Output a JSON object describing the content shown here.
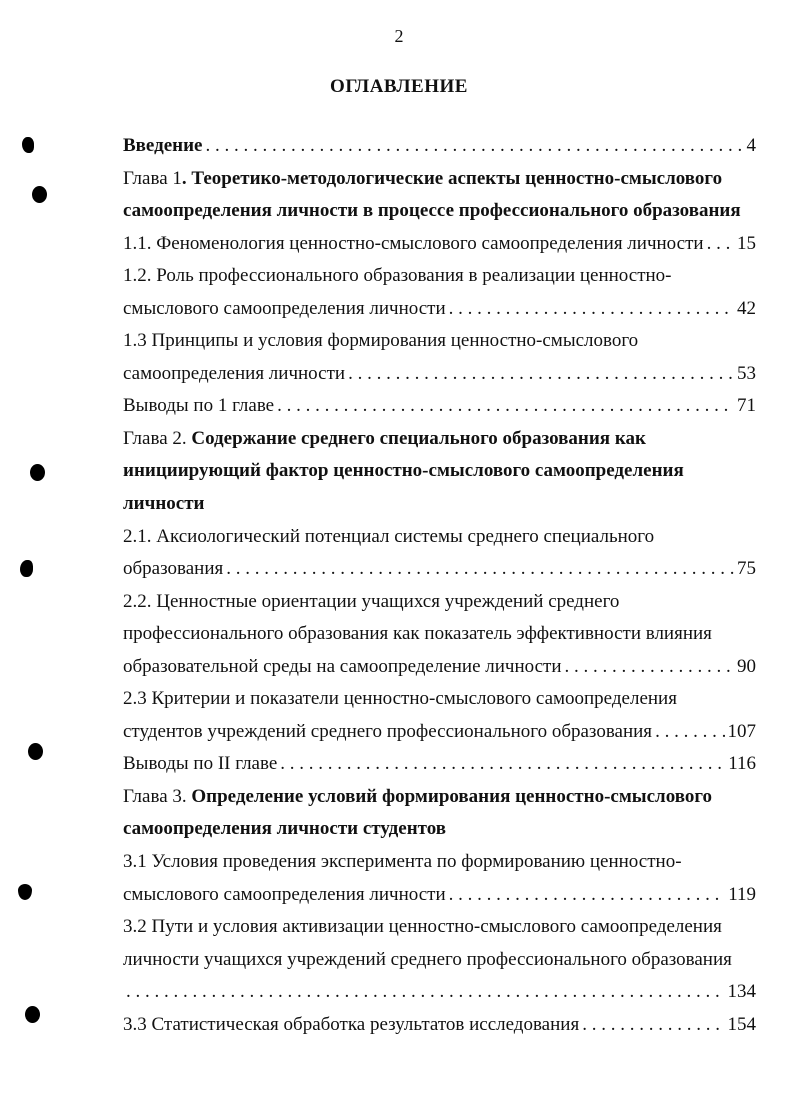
{
  "page_number": "2",
  "title": "ОГЛАВЛЕНИЕ",
  "entries": [
    {
      "lines": [
        {
          "bold": "Введение"
        }
      ],
      "page": "4"
    },
    {
      "lines": [
        {
          "regular": "Глава 1",
          "bold": ". Теоретико-методологические аспекты ценностно-смыслового"
        },
        {
          "bold": "самоопределения личности в процессе профессионального образования"
        }
      ]
    },
    {
      "lines": [
        {
          "regular": "1.1. Феноменология ценностно-смыслового самоопределения личности"
        }
      ],
      "page": "15"
    },
    {
      "lines": [
        {
          "regular": "1.2. Роль профессионального образования в реализации ценностно-"
        },
        {
          "regular": "смыслового самоопределения личности"
        }
      ],
      "page": "42"
    },
    {
      "lines": [
        {
          "regular": "1.3 Принципы и условия формирования ценностно-смыслового"
        },
        {
          "regular": "самоопределения личности"
        }
      ],
      "page": "53"
    },
    {
      "lines": [
        {
          "regular": "Выводы по 1 главе"
        }
      ],
      "page": "71"
    },
    {
      "lines": [
        {
          "regular": "Глава 2. ",
          "bold": "Содержание среднего специального образования как"
        },
        {
          "bold": "инициирующий фактор ценностно-смыслового самоопределения"
        },
        {
          "bold": "личности"
        }
      ]
    },
    {
      "lines": [
        {
          "regular": "2.1. Аксиологический потенциал системы среднего специального"
        },
        {
          "regular": "образования"
        }
      ],
      "page": "75"
    },
    {
      "lines": [
        {
          "regular": "2.2. Ценностные ориентации учащихся учреждений среднего"
        },
        {
          "regular": "профессионального образования как показатель эффективности влияния"
        },
        {
          "regular": "образовательной среды на самоопределение личности"
        }
      ],
      "page": "90"
    },
    {
      "lines": [
        {
          "regular": "2.3 Критерии и показатели ценностно-смыслового самоопределения"
        },
        {
          "regular": "студентов учреждений среднего профессионального образования"
        }
      ],
      "page": "107"
    },
    {
      "lines": [
        {
          "regular": "Выводы по II главе"
        }
      ],
      "page": "116"
    },
    {
      "lines": [
        {
          "regular": "Глава 3. ",
          "bold": "Определение условий формирования ценностно-смыслового"
        },
        {
          "bold": "самоопределения личности студентов"
        }
      ]
    },
    {
      "lines": [
        {
          "regular": "3.1 Условия проведения эксперимента по формированию ценностно-"
        },
        {
          "regular": "смыслового самоопределения личности"
        }
      ],
      "page": "119"
    },
    {
      "lines": [
        {
          "regular": "3.2 Пути и условия активизации ценностно-смыслового самоопределения"
        },
        {
          "regular": "личности учащихся учреждений среднего профессионального образования"
        },
        {
          "regular": ""
        }
      ],
      "page": "134"
    },
    {
      "lines": [
        {
          "regular": "3.3 Статистическая обработка результатов исследования"
        }
      ],
      "page": "154"
    }
  ]
}
